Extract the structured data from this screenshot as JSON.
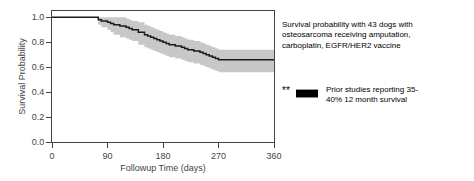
{
  "chart_data": {
    "type": "line",
    "line_style": "step",
    "xlabel": "Followup Time (days)",
    "ylabel": "Survival Probability",
    "xlim": [
      0,
      360
    ],
    "ylim": [
      0.0,
      1.05
    ],
    "xticks": [
      0,
      90,
      180,
      270,
      360
    ],
    "yticks": [
      {
        "value": 0.0,
        "label": "0.0"
      },
      0.2,
      0.4,
      0.6,
      0.8,
      {
        "value": 1.0,
        "label": "1.0"
      }
    ],
    "grid": false,
    "x": [
      0,
      30,
      60,
      75,
      80,
      90,
      95,
      100,
      110,
      120,
      125,
      130,
      140,
      150,
      155,
      160,
      165,
      170,
      175,
      180,
      185,
      190,
      200,
      210,
      215,
      220,
      230,
      240,
      245,
      250,
      255,
      260,
      265,
      270,
      280,
      290,
      300,
      310,
      320,
      330,
      340,
      350,
      360
    ],
    "series": [
      {
        "color": "#1a1a1a",
        "values": [
          1.0,
          1.0,
          1.0,
          0.98,
          0.97,
          0.96,
          0.95,
          0.94,
          0.93,
          0.92,
          0.91,
          0.9,
          0.88,
          0.86,
          0.85,
          0.84,
          0.83,
          0.82,
          0.81,
          0.8,
          0.79,
          0.78,
          0.77,
          0.76,
          0.75,
          0.74,
          0.73,
          0.72,
          0.71,
          0.7,
          0.69,
          0.68,
          0.67,
          0.66,
          0.66,
          0.66,
          0.66,
          0.66,
          0.66,
          0.66,
          0.66,
          0.66,
          0.66
        ],
        "ci_upper": [
          1.0,
          1.0,
          1.0,
          1.0,
          1.0,
          1.0,
          1.0,
          1.0,
          1.0,
          0.99,
          0.98,
          0.97,
          0.96,
          0.94,
          0.93,
          0.92,
          0.91,
          0.9,
          0.89,
          0.88,
          0.87,
          0.86,
          0.85,
          0.84,
          0.83,
          0.82,
          0.81,
          0.8,
          0.79,
          0.78,
          0.77,
          0.76,
          0.75,
          0.74,
          0.74,
          0.74,
          0.74,
          0.74,
          0.74,
          0.74,
          0.74,
          0.74,
          0.74
        ],
        "ci_lower": [
          1.0,
          1.0,
          1.0,
          0.94,
          0.92,
          0.9,
          0.88,
          0.86,
          0.84,
          0.83,
          0.82,
          0.81,
          0.78,
          0.76,
          0.75,
          0.74,
          0.73,
          0.72,
          0.71,
          0.7,
          0.69,
          0.68,
          0.67,
          0.66,
          0.65,
          0.64,
          0.63,
          0.62,
          0.61,
          0.6,
          0.59,
          0.58,
          0.57,
          0.56,
          0.56,
          0.56,
          0.56,
          0.56,
          0.56,
          0.56,
          0.56,
          0.56,
          0.56
        ],
        "ci_color": "#c8c8c8"
      }
    ],
    "annotations": [
      {
        "text": "Survival probability with 43 dogs with\nosteosarcoma receiving amputation,\ncarboplatin, EGFR/HER2 vaccine"
      },
      {
        "text": "**",
        "color": "#000000"
      },
      {
        "text": "Prior studies reporting 35-\n40% 12 month survival"
      }
    ]
  }
}
